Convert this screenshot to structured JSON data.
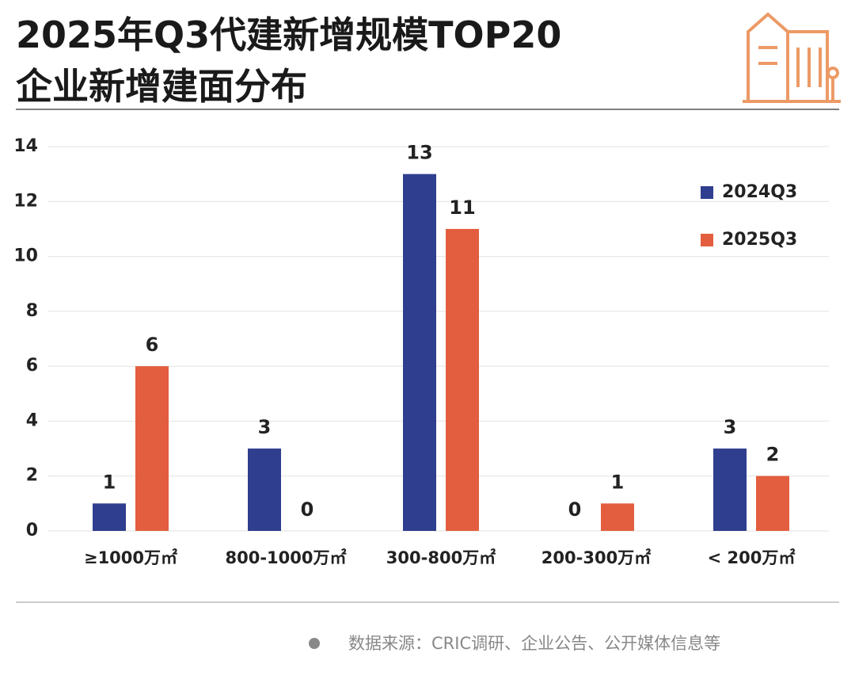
{
  "chart_data": {
    "type": "bar",
    "title": [
      "2025年Q3代建新增规模TOP20",
      "企业新增建面分布"
    ],
    "categories": [
      "≥1000万㎡",
      "800-1000万㎡",
      "300-800万㎡",
      "200-300万㎡",
      "< 200万㎡"
    ],
    "series": [
      {
        "name": "2024Q3",
        "color": "#2f3e8e",
        "values": [
          1,
          3,
          13,
          0,
          3
        ]
      },
      {
        "name": "2025Q3",
        "color": "#e35e3e",
        "values": [
          6,
          0,
          11,
          1,
          2
        ]
      }
    ],
    "ylim": [
      0,
      14
    ],
    "yticks": [
      0,
      2,
      4,
      6,
      8,
      10,
      12,
      14
    ],
    "grid": true,
    "legend": "top-right",
    "source": "数据来源：CRIC调研、企业公告、公开媒体信息等"
  }
}
